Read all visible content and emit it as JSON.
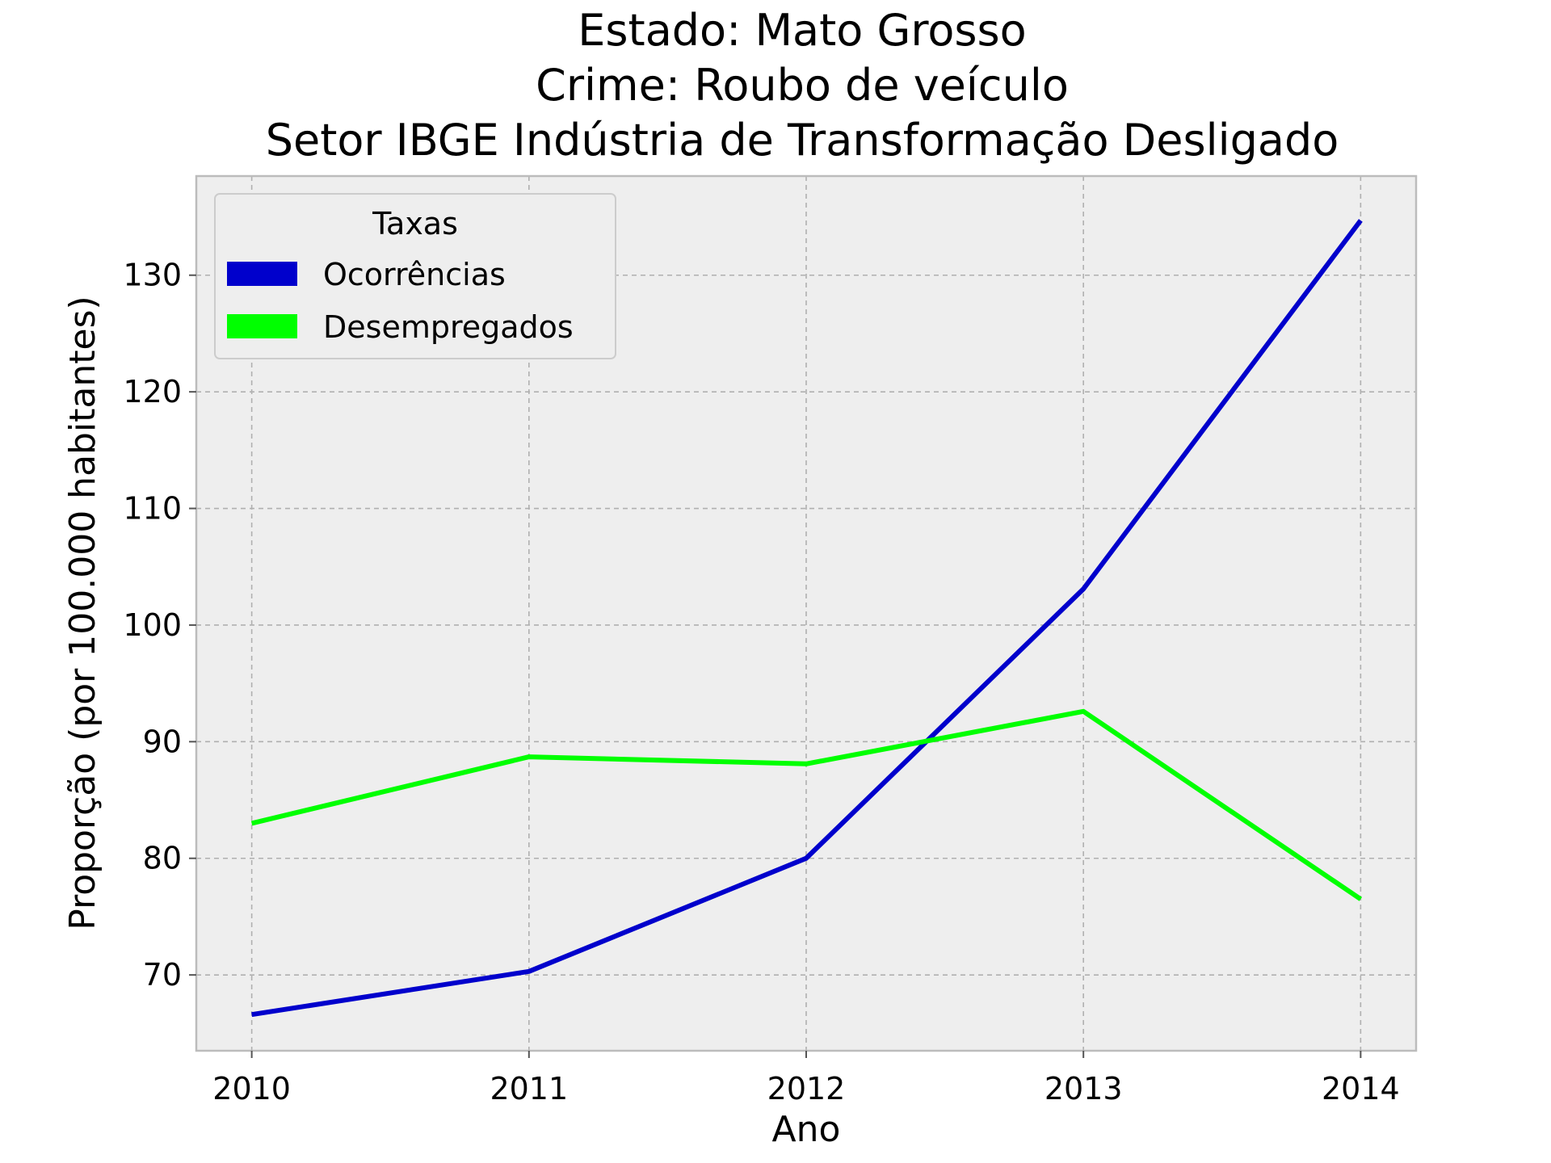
{
  "chart_data": {
    "type": "line",
    "title_lines": [
      "Estado: Mato Grosso",
      "Crime: Roubo de veículo",
      "Setor IBGE  Indústria de Transformação   Desligado"
    ],
    "xlabel": "Ano",
    "ylabel": "Proporção (por 100.000 habitantes)",
    "x": [
      2010,
      2011,
      2012,
      2013,
      2014
    ],
    "x_tick_labels": [
      "2010",
      "2011",
      "2012",
      "2013",
      "2014"
    ],
    "y_ticks": [
      70,
      80,
      90,
      100,
      110,
      120,
      130
    ],
    "y_tick_labels": [
      "70",
      "80",
      "90",
      "100",
      "110",
      "120",
      "130"
    ],
    "xlim": [
      2009.8,
      2014.2
    ],
    "ylim": [
      63.5,
      138.5
    ],
    "grid": true,
    "legend": {
      "title": "Taxas",
      "placement": "top-left"
    },
    "series": [
      {
        "name": "Ocorrências",
        "color": "#0000cc",
        "values": [
          66.6,
          70.3,
          80.0,
          103.1,
          134.7
        ]
      },
      {
        "name": "Desempregados",
        "color": "#00ff00",
        "values": [
          83.0,
          88.7,
          88.1,
          92.6,
          76.5
        ]
      }
    ],
    "colors": {
      "plot_background": "#eeeeee",
      "grid": "#b0b0b0",
      "spine": "#bcbcbc"
    }
  }
}
